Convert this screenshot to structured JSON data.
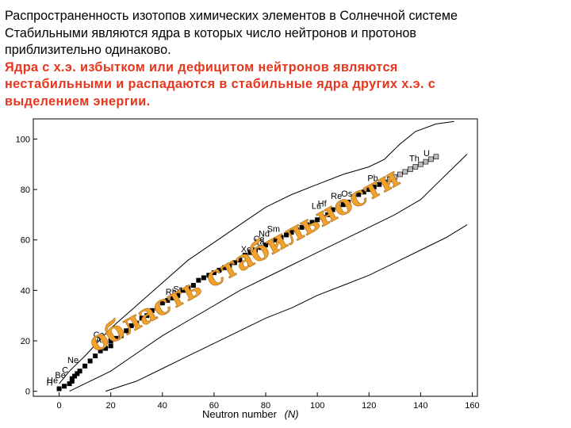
{
  "slide": {
    "line1": "Распространенность изотопов химических элементов в Солнечной системе",
    "line2": "Стабильными являются ядра в которых число нейтронов и протонов",
    "line3": "приблизительно одинаково.",
    "red1": "Ядра с х.э. избытком или дефицитом нейтронов являются",
    "red2": "нестабильными и распадаются в стабильные ядра других х.э. с",
    "red3": "выделением энергии."
  },
  "colors": {
    "text": "#000000",
    "accent_red": "#e8351d",
    "overlay_fill": "#f2a22a",
    "overlay_stroke": "#a5661a"
  },
  "chart_data": {
    "type": "scatter",
    "title": "",
    "xlabel": "Neutron number",
    "xlabel_var": "(N)",
    "ylabel": "",
    "xlim": [
      -10,
      162
    ],
    "ylim": [
      -2,
      108
    ],
    "xticks": [
      0,
      20,
      40,
      60,
      80,
      100,
      120,
      140,
      160
    ],
    "yticks": [
      0,
      20,
      40,
      60,
      80,
      100
    ],
    "overlay_text": "область стабильности",
    "element_labels": [
      {
        "label": "H",
        "N": 0,
        "Z": 1
      },
      {
        "label": "He",
        "N": 2,
        "Z": 2
      },
      {
        "label": "Be",
        "N": 5,
        "Z": 4
      },
      {
        "label": "C",
        "N": 6,
        "Z": 6
      },
      {
        "label": "Ne",
        "N": 10,
        "Z": 10
      },
      {
        "label": "Ar",
        "N": 20,
        "Z": 18
      },
      {
        "label": "K",
        "N": 20,
        "Z": 19
      },
      {
        "label": "Ca",
        "N": 20,
        "Z": 20
      },
      {
        "label": "Rb",
        "N": 48,
        "Z": 37
      },
      {
        "label": "Sr",
        "N": 50,
        "Z": 38
      },
      {
        "label": "Xe",
        "N": 77,
        "Z": 54
      },
      {
        "label": "La",
        "N": 82,
        "Z": 57
      },
      {
        "label": "Ce",
        "N": 82,
        "Z": 58
      },
      {
        "label": "Nd",
        "N": 84,
        "Z": 60
      },
      {
        "label": "Sm",
        "N": 88,
        "Z": 62
      },
      {
        "label": "Lu",
        "N": 104,
        "Z": 71
      },
      {
        "label": "Hf",
        "N": 106,
        "Z": 72
      },
      {
        "label": "Re",
        "N": 112,
        "Z": 75
      },
      {
        "label": "Os",
        "N": 116,
        "Z": 76
      },
      {
        "label": "Pb",
        "N": 126,
        "Z": 82
      },
      {
        "label": "U",
        "N": 146,
        "Z": 92
      },
      {
        "label": "Th",
        "N": 142,
        "Z": 90
      }
    ],
    "series": [
      {
        "role": "stable-nuclei",
        "points": [
          [
            0,
            1
          ],
          [
            2,
            2
          ],
          [
            4,
            3
          ],
          [
            5,
            4
          ],
          [
            5,
            5
          ],
          [
            6,
            6
          ],
          [
            7,
            7
          ],
          [
            8,
            8
          ],
          [
            10,
            10
          ],
          [
            12,
            12
          ],
          [
            14,
            14
          ],
          [
            16,
            16
          ],
          [
            18,
            17
          ],
          [
            20,
            18
          ],
          [
            20,
            20
          ],
          [
            22,
            21
          ],
          [
            24,
            22
          ],
          [
            26,
            24
          ],
          [
            28,
            26
          ],
          [
            30,
            27
          ],
          [
            32,
            29
          ],
          [
            34,
            30
          ],
          [
            36,
            32
          ],
          [
            38,
            33
          ],
          [
            40,
            35
          ],
          [
            42,
            36
          ],
          [
            44,
            37
          ],
          [
            46,
            38
          ],
          [
            48,
            40
          ],
          [
            50,
            41
          ],
          [
            52,
            42
          ],
          [
            54,
            44
          ],
          [
            56,
            45
          ],
          [
            58,
            46
          ],
          [
            60,
            47
          ],
          [
            62,
            48
          ],
          [
            64,
            49
          ],
          [
            66,
            50
          ],
          [
            68,
            51
          ],
          [
            70,
            52
          ],
          [
            72,
            54
          ],
          [
            74,
            55
          ],
          [
            76,
            56
          ],
          [
            78,
            57
          ],
          [
            80,
            58
          ],
          [
            82,
            59
          ],
          [
            84,
            60
          ],
          [
            86,
            61
          ],
          [
            88,
            62
          ],
          [
            90,
            63
          ],
          [
            92,
            64
          ],
          [
            94,
            65
          ],
          [
            96,
            66
          ],
          [
            98,
            67
          ],
          [
            100,
            68
          ],
          [
            102,
            69
          ],
          [
            104,
            70
          ],
          [
            106,
            72
          ],
          [
            108,
            73
          ],
          [
            110,
            74
          ],
          [
            112,
            75
          ],
          [
            114,
            77
          ],
          [
            116,
            78
          ],
          [
            118,
            79
          ],
          [
            120,
            80
          ],
          [
            122,
            81
          ],
          [
            124,
            82
          ],
          [
            126,
            83
          ]
        ]
      },
      {
        "role": "long-lived-nuclei",
        "points": [
          [
            128,
            84
          ],
          [
            130,
            85
          ],
          [
            132,
            86
          ],
          [
            134,
            87
          ],
          [
            136,
            88
          ],
          [
            138,
            89
          ],
          [
            140,
            90
          ],
          [
            142,
            91
          ],
          [
            144,
            92
          ],
          [
            146,
            93
          ]
        ]
      },
      {
        "role": "proton-rich-boundary",
        "points": [
          [
            0,
            3
          ],
          [
            4,
            8
          ],
          [
            10,
            14
          ],
          [
            20,
            25
          ],
          [
            30,
            34
          ],
          [
            40,
            43
          ],
          [
            50,
            52
          ],
          [
            60,
            59
          ],
          [
            70,
            66
          ],
          [
            80,
            73
          ],
          [
            90,
            78
          ],
          [
            100,
            82
          ],
          [
            110,
            86
          ],
          [
            120,
            89
          ],
          [
            126,
            92
          ],
          [
            132,
            98
          ],
          [
            138,
            103
          ],
          [
            146,
            106
          ],
          [
            153,
            107
          ]
        ]
      },
      {
        "role": "neutron-rich-boundary",
        "points": [
          [
            4,
            0
          ],
          [
            10,
            3
          ],
          [
            20,
            8
          ],
          [
            30,
            15
          ],
          [
            40,
            22
          ],
          [
            50,
            28
          ],
          [
            60,
            34
          ],
          [
            70,
            40
          ],
          [
            80,
            45
          ],
          [
            90,
            50
          ],
          [
            100,
            55
          ],
          [
            110,
            60
          ],
          [
            120,
            65
          ],
          [
            130,
            70
          ],
          [
            140,
            76
          ],
          [
            146,
            82
          ],
          [
            152,
            88
          ],
          [
            158,
            94
          ]
        ]
      },
      {
        "role": "reference-line",
        "points": [
          [
            18,
            0
          ],
          [
            30,
            4
          ],
          [
            40,
            9
          ],
          [
            50,
            14
          ],
          [
            60,
            19
          ],
          [
            70,
            24
          ],
          [
            80,
            29
          ],
          [
            90,
            33
          ],
          [
            100,
            38
          ],
          [
            110,
            42
          ],
          [
            120,
            46
          ],
          [
            130,
            51
          ],
          [
            140,
            56
          ],
          [
            150,
            61
          ],
          [
            158,
            66
          ]
        ]
      }
    ]
  }
}
